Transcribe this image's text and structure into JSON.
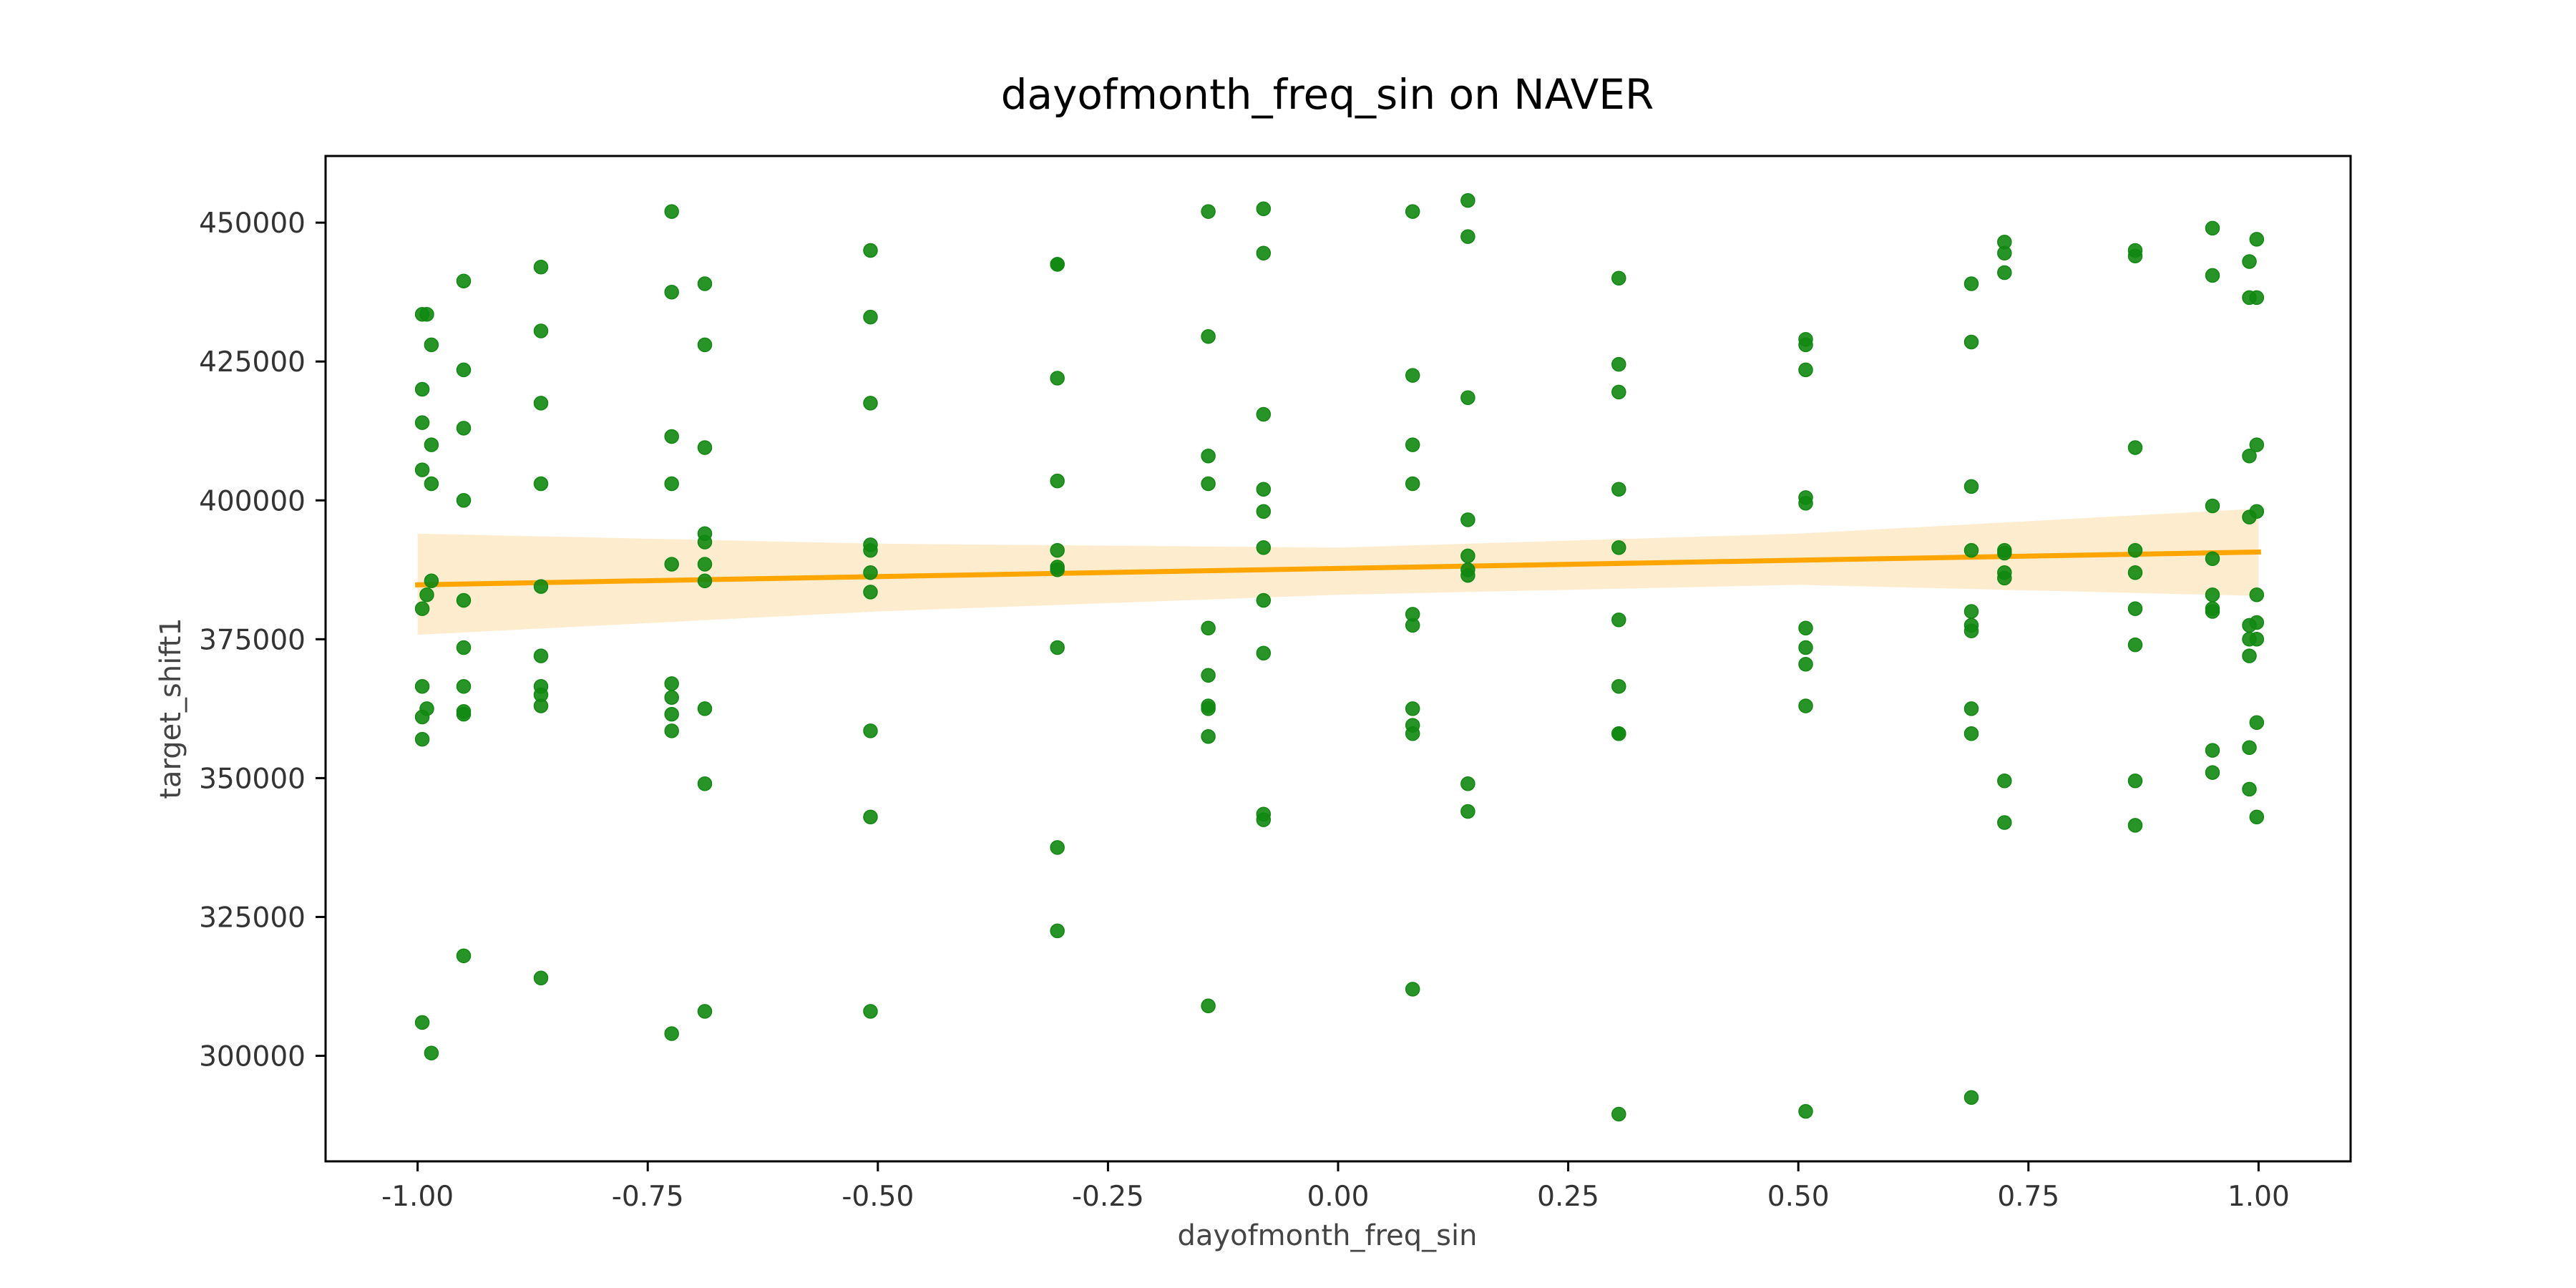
{
  "colors": {
    "points": "#118811",
    "fit_line": "#FFA500",
    "ci_band": "#FDE9C6",
    "axes": "#000000"
  },
  "chart_data": {
    "type": "scatter",
    "title": "dayofmonth_freq_sin on NAVER",
    "xlabel": "dayofmonth_freq_sin",
    "ylabel": "target_shift1",
    "xlim": [
      -1.1,
      1.1
    ],
    "ylim": [
      281000,
      462000
    ],
    "xticks": [
      "-1.00",
      "-0.75",
      "-0.50",
      "-0.25",
      "0.00",
      "0.25",
      "0.50",
      "0.75",
      "1.00"
    ],
    "xtick_values": [
      -1.0,
      -0.75,
      -0.5,
      -0.25,
      0.0,
      0.25,
      0.5,
      0.75,
      1.0
    ],
    "yticks": [
      "300000",
      "325000",
      "350000",
      "375000",
      "400000",
      "425000",
      "450000"
    ],
    "ytick_values": [
      300000,
      325000,
      350000,
      375000,
      400000,
      425000,
      450000
    ],
    "grid": false,
    "legend": false,
    "fit": {
      "x": [
        -1.0,
        1.0
      ],
      "y": [
        384800,
        390700
      ],
      "ci_x": [
        -1.0,
        -0.5,
        0.0,
        0.5,
        1.0
      ],
      "ci_upper": [
        394000,
        392200,
        391500,
        394000,
        398500
      ],
      "ci_lower": [
        375800,
        380000,
        383000,
        384800,
        382800
      ]
    },
    "points": [
      {
        "x": -0.995,
        "y": 433500
      },
      {
        "x": -0.99,
        "y": 433500
      },
      {
        "x": -0.985,
        "y": 428000
      },
      {
        "x": -0.995,
        "y": 420000
      },
      {
        "x": -0.995,
        "y": 414000
      },
      {
        "x": -0.985,
        "y": 410000
      },
      {
        "x": -0.995,
        "y": 405500
      },
      {
        "x": -0.985,
        "y": 403000
      },
      {
        "x": -0.985,
        "y": 385500
      },
      {
        "x": -0.99,
        "y": 383000
      },
      {
        "x": -0.995,
        "y": 380500
      },
      {
        "x": -0.995,
        "y": 366500
      },
      {
        "x": -0.99,
        "y": 362500
      },
      {
        "x": -0.995,
        "y": 361000
      },
      {
        "x": -0.995,
        "y": 357000
      },
      {
        "x": -0.995,
        "y": 306000
      },
      {
        "x": -0.985,
        "y": 300500
      },
      {
        "x": -0.95,
        "y": 439500
      },
      {
        "x": -0.95,
        "y": 423500
      },
      {
        "x": -0.95,
        "y": 413000
      },
      {
        "x": -0.95,
        "y": 400000
      },
      {
        "x": -0.95,
        "y": 382000
      },
      {
        "x": -0.95,
        "y": 373500
      },
      {
        "x": -0.95,
        "y": 366500
      },
      {
        "x": -0.95,
        "y": 362000
      },
      {
        "x": -0.95,
        "y": 361500
      },
      {
        "x": -0.95,
        "y": 318000
      },
      {
        "x": -0.866,
        "y": 442000
      },
      {
        "x": -0.866,
        "y": 430500
      },
      {
        "x": -0.866,
        "y": 417500
      },
      {
        "x": -0.866,
        "y": 403000
      },
      {
        "x": -0.866,
        "y": 384500
      },
      {
        "x": -0.866,
        "y": 372000
      },
      {
        "x": -0.866,
        "y": 366500
      },
      {
        "x": -0.866,
        "y": 365000
      },
      {
        "x": -0.866,
        "y": 363000
      },
      {
        "x": -0.866,
        "y": 314000
      },
      {
        "x": -0.724,
        "y": 452000
      },
      {
        "x": -0.724,
        "y": 437500
      },
      {
        "x": -0.724,
        "y": 411500
      },
      {
        "x": -0.724,
        "y": 403000
      },
      {
        "x": -0.724,
        "y": 388500
      },
      {
        "x": -0.724,
        "y": 367000
      },
      {
        "x": -0.724,
        "y": 364500
      },
      {
        "x": -0.724,
        "y": 361500
      },
      {
        "x": -0.724,
        "y": 358500
      },
      {
        "x": -0.724,
        "y": 304000
      },
      {
        "x": -0.688,
        "y": 439000
      },
      {
        "x": -0.688,
        "y": 428000
      },
      {
        "x": -0.688,
        "y": 409500
      },
      {
        "x": -0.688,
        "y": 394000
      },
      {
        "x": -0.688,
        "y": 392500
      },
      {
        "x": -0.688,
        "y": 388500
      },
      {
        "x": -0.688,
        "y": 385500
      },
      {
        "x": -0.688,
        "y": 362500
      },
      {
        "x": -0.688,
        "y": 349000
      },
      {
        "x": -0.688,
        "y": 308000
      },
      {
        "x": -0.508,
        "y": 445000
      },
      {
        "x": -0.508,
        "y": 433000
      },
      {
        "x": -0.508,
        "y": 417500
      },
      {
        "x": -0.508,
        "y": 392000
      },
      {
        "x": -0.508,
        "y": 391000
      },
      {
        "x": -0.508,
        "y": 387000
      },
      {
        "x": -0.508,
        "y": 383500
      },
      {
        "x": -0.508,
        "y": 358500
      },
      {
        "x": -0.508,
        "y": 343000
      },
      {
        "x": -0.508,
        "y": 308000
      },
      {
        "x": -0.305,
        "y": 442500
      },
      {
        "x": -0.305,
        "y": 442500
      },
      {
        "x": -0.305,
        "y": 422000
      },
      {
        "x": -0.305,
        "y": 403500
      },
      {
        "x": -0.305,
        "y": 391000
      },
      {
        "x": -0.305,
        "y": 388000
      },
      {
        "x": -0.305,
        "y": 387500
      },
      {
        "x": -0.305,
        "y": 373500
      },
      {
        "x": -0.305,
        "y": 337500
      },
      {
        "x": -0.305,
        "y": 322500
      },
      {
        "x": -0.141,
        "y": 452000
      },
      {
        "x": -0.141,
        "y": 429500
      },
      {
        "x": -0.141,
        "y": 408000
      },
      {
        "x": -0.141,
        "y": 403000
      },
      {
        "x": -0.141,
        "y": 377000
      },
      {
        "x": -0.141,
        "y": 368500
      },
      {
        "x": -0.141,
        "y": 363000
      },
      {
        "x": -0.141,
        "y": 362500
      },
      {
        "x": -0.141,
        "y": 357500
      },
      {
        "x": -0.141,
        "y": 309000
      },
      {
        "x": -0.081,
        "y": 452500
      },
      {
        "x": -0.081,
        "y": 444500
      },
      {
        "x": -0.081,
        "y": 415500
      },
      {
        "x": -0.081,
        "y": 402000
      },
      {
        "x": -0.081,
        "y": 398000
      },
      {
        "x": -0.081,
        "y": 391500
      },
      {
        "x": -0.081,
        "y": 382000
      },
      {
        "x": -0.081,
        "y": 372500
      },
      {
        "x": -0.081,
        "y": 343500
      },
      {
        "x": -0.081,
        "y": 342500
      },
      {
        "x": 0.081,
        "y": 452000
      },
      {
        "x": 0.081,
        "y": 422500
      },
      {
        "x": 0.081,
        "y": 410000
      },
      {
        "x": 0.081,
        "y": 403000
      },
      {
        "x": 0.081,
        "y": 379500
      },
      {
        "x": 0.081,
        "y": 377500
      },
      {
        "x": 0.081,
        "y": 362500
      },
      {
        "x": 0.081,
        "y": 359500
      },
      {
        "x": 0.081,
        "y": 358000
      },
      {
        "x": 0.081,
        "y": 312000
      },
      {
        "x": 0.141,
        "y": 454000
      },
      {
        "x": 0.141,
        "y": 447500
      },
      {
        "x": 0.141,
        "y": 418500
      },
      {
        "x": 0.141,
        "y": 396500
      },
      {
        "x": 0.141,
        "y": 390000
      },
      {
        "x": 0.141,
        "y": 387500
      },
      {
        "x": 0.141,
        "y": 386500
      },
      {
        "x": 0.141,
        "y": 349000
      },
      {
        "x": 0.141,
        "y": 344000
      },
      {
        "x": 0.305,
        "y": 440000
      },
      {
        "x": 0.305,
        "y": 424500
      },
      {
        "x": 0.305,
        "y": 419500
      },
      {
        "x": 0.305,
        "y": 402000
      },
      {
        "x": 0.305,
        "y": 391500
      },
      {
        "x": 0.305,
        "y": 378500
      },
      {
        "x": 0.305,
        "y": 366500
      },
      {
        "x": 0.305,
        "y": 358000
      },
      {
        "x": 0.305,
        "y": 358000
      },
      {
        "x": 0.305,
        "y": 289500
      },
      {
        "x": 0.508,
        "y": 429000
      },
      {
        "x": 0.508,
        "y": 428000
      },
      {
        "x": 0.508,
        "y": 423500
      },
      {
        "x": 0.508,
        "y": 400500
      },
      {
        "x": 0.508,
        "y": 399500
      },
      {
        "x": 0.508,
        "y": 377000
      },
      {
        "x": 0.508,
        "y": 373500
      },
      {
        "x": 0.508,
        "y": 370500
      },
      {
        "x": 0.508,
        "y": 363000
      },
      {
        "x": 0.508,
        "y": 290000
      },
      {
        "x": 0.688,
        "y": 439000
      },
      {
        "x": 0.688,
        "y": 428500
      },
      {
        "x": 0.688,
        "y": 402500
      },
      {
        "x": 0.688,
        "y": 391000
      },
      {
        "x": 0.688,
        "y": 380000
      },
      {
        "x": 0.688,
        "y": 377500
      },
      {
        "x": 0.688,
        "y": 376500
      },
      {
        "x": 0.688,
        "y": 362500
      },
      {
        "x": 0.688,
        "y": 358000
      },
      {
        "x": 0.688,
        "y": 292500
      },
      {
        "x": 0.724,
        "y": 446500
      },
      {
        "x": 0.724,
        "y": 444500
      },
      {
        "x": 0.724,
        "y": 441000
      },
      {
        "x": 0.724,
        "y": 391000
      },
      {
        "x": 0.724,
        "y": 390500
      },
      {
        "x": 0.724,
        "y": 387000
      },
      {
        "x": 0.724,
        "y": 386000
      },
      {
        "x": 0.724,
        "y": 349500
      },
      {
        "x": 0.724,
        "y": 342000
      },
      {
        "x": 0.866,
        "y": 445000
      },
      {
        "x": 0.866,
        "y": 444000
      },
      {
        "x": 0.866,
        "y": 409500
      },
      {
        "x": 0.866,
        "y": 391000
      },
      {
        "x": 0.866,
        "y": 387000
      },
      {
        "x": 0.866,
        "y": 380500
      },
      {
        "x": 0.866,
        "y": 374000
      },
      {
        "x": 0.866,
        "y": 349500
      },
      {
        "x": 0.866,
        "y": 341500
      },
      {
        "x": 0.95,
        "y": 449000
      },
      {
        "x": 0.95,
        "y": 440500
      },
      {
        "x": 0.95,
        "y": 399000
      },
      {
        "x": 0.95,
        "y": 389500
      },
      {
        "x": 0.95,
        "y": 383000
      },
      {
        "x": 0.95,
        "y": 380500
      },
      {
        "x": 0.95,
        "y": 380000
      },
      {
        "x": 0.95,
        "y": 355000
      },
      {
        "x": 0.95,
        "y": 351000
      },
      {
        "x": 0.99,
        "y": 443000
      },
      {
        "x": 0.99,
        "y": 436500
      },
      {
        "x": 0.998,
        "y": 436500
      },
      {
        "x": 0.998,
        "y": 447000
      },
      {
        "x": 0.998,
        "y": 410000
      },
      {
        "x": 0.99,
        "y": 408000
      },
      {
        "x": 0.99,
        "y": 397000
      },
      {
        "x": 0.998,
        "y": 398000
      },
      {
        "x": 0.998,
        "y": 383000
      },
      {
        "x": 0.99,
        "y": 377500
      },
      {
        "x": 0.998,
        "y": 378000
      },
      {
        "x": 0.99,
        "y": 375000
      },
      {
        "x": 0.998,
        "y": 375000
      },
      {
        "x": 0.99,
        "y": 372000
      },
      {
        "x": 0.998,
        "y": 360000
      },
      {
        "x": 0.99,
        "y": 355500
      },
      {
        "x": 0.99,
        "y": 348000
      },
      {
        "x": 0.998,
        "y": 343000
      }
    ]
  }
}
